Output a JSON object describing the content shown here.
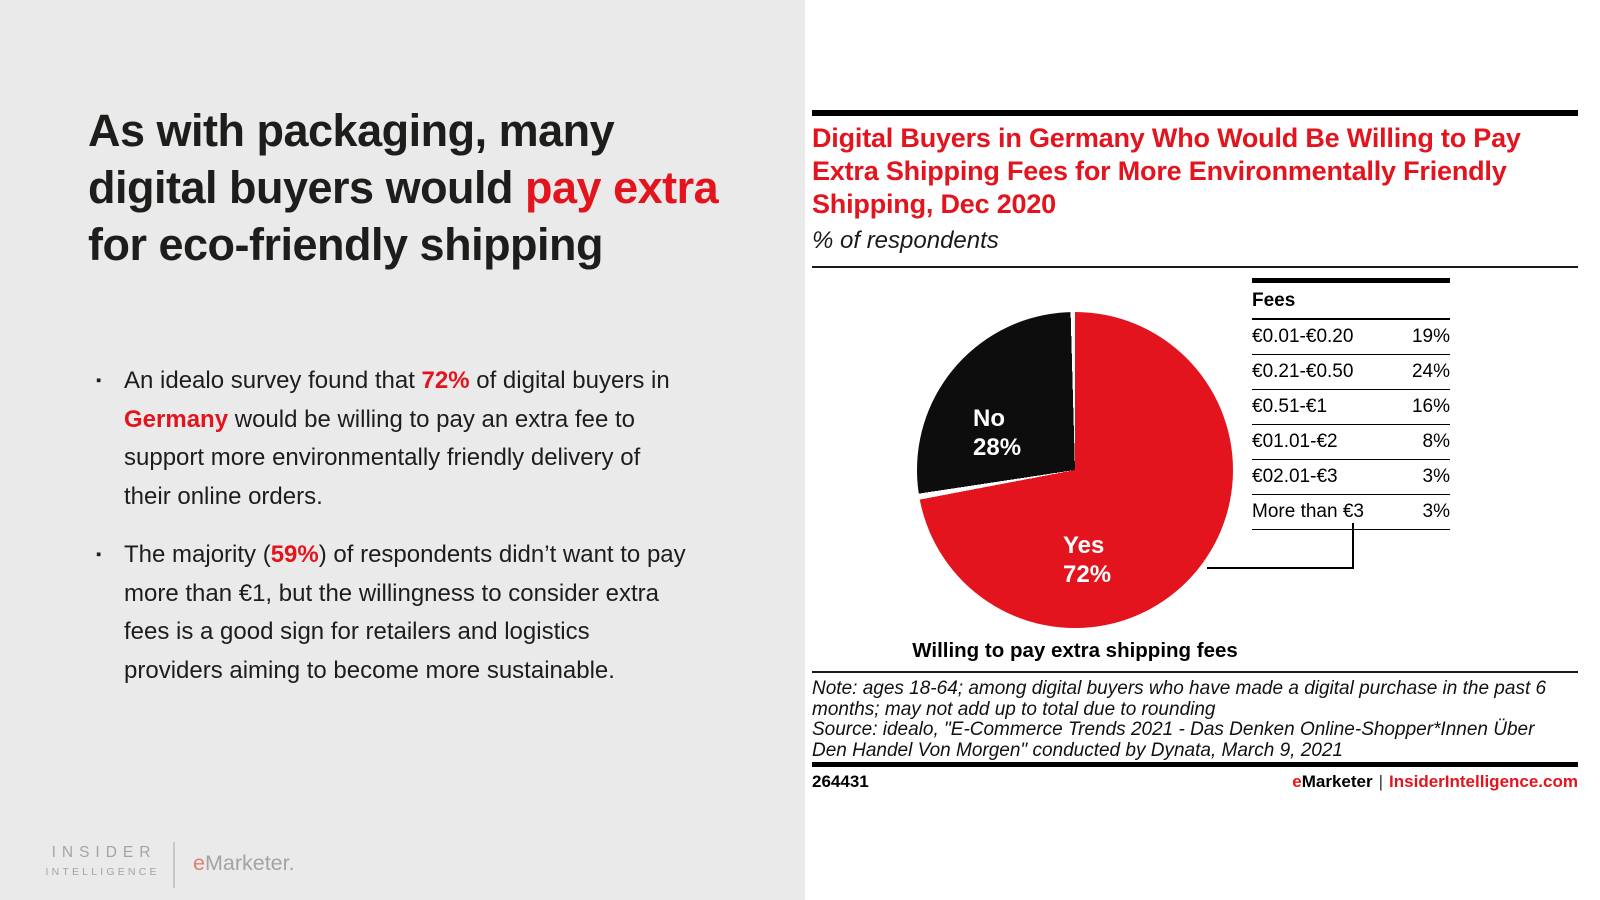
{
  "colors": {
    "accent_red": "#e3141d",
    "pie_no_black": "#0d0d0d",
    "left_panel_bg": "#ebeaea",
    "muted_logo_gray": "#a7a2a2",
    "muted_logo_red": "#d98078"
  },
  "slide": {
    "headline": {
      "pre": "As with packaging, many digital buyers would ",
      "highlight": "pay extra",
      "post": " for eco-friendly shipping"
    },
    "bullet_icon": "▪",
    "bullets": [
      {
        "s0": "An idealo survey found that ",
        "r1": "72%",
        "s2": " of digital buyers in ",
        "r3": "Germany",
        "s4": " would be willing to pay an extra fee to support more environmentally friendly delivery of their online orders."
      },
      {
        "s0": "The majority (",
        "r1": "59%",
        "s2": ") of respondents didn’t want to pay more than €1, but the willingness to consider extra fees is a good sign for retailers and logistics providers aiming to become more sustainable."
      }
    ],
    "brand": {
      "line1": "INSIDER",
      "line2": "INTELLIGENCE",
      "emarketer_e": "e",
      "emarketer_rest": "Marketer."
    }
  },
  "chart": {
    "title": "Digital Buyers in Germany Who Would Be Willing to Pay Extra Shipping Fees for More Environmentally Friendly Shipping, Dec 2020",
    "subtitle": "% of respondents",
    "pie_labels": {
      "no_name": "No",
      "no_value": "28%",
      "yes_name": "Yes",
      "yes_value": "72%"
    },
    "caption": "Willing to pay extra shipping fees",
    "fees": {
      "header": "Fees",
      "rows": [
        {
          "label": "€0.01-€0.20",
          "value": "19%"
        },
        {
          "label": "€0.21-€0.50",
          "value": "24%"
        },
        {
          "label": "€0.51-€1",
          "value": "16%"
        },
        {
          "label": "€01.01-€2",
          "value": "8%"
        },
        {
          "label": "€02.01-€3",
          "value": "3%"
        },
        {
          "label": "More than €3",
          "value": "3%"
        }
      ]
    },
    "note": "Note: ages 18-64; among digital buyers who have made a digital purchase in the past 6 months; may not add up to total due to rounding",
    "source": "Source: idealo, \"E-Commerce Trends 2021 - Das Denken Online-Shopper*Innen Über Den Handel Von Morgen\" conducted by Dynata, March 9, 2021",
    "chart_id": "264431",
    "footer": {
      "emarketer_e": "e",
      "emarketer_rest": "Marketer",
      "separator": "|",
      "site": "InsiderIntelligence.com"
    }
  },
  "chart_data": {
    "type": "pie",
    "title": "Digital Buyers in Germany Who Would Be Willing to Pay Extra Shipping Fees for More Environmentally Friendly Shipping, Dec 2020",
    "subtitle": "% of respondents",
    "slices": [
      {
        "label": "Yes",
        "value": 72,
        "color": "#e3141d"
      },
      {
        "label": "No",
        "value": 28,
        "color": "#0d0d0d"
      }
    ],
    "start_angle": "12 o'clock",
    "direction": "clockwise",
    "caption": "Willing to pay extra shipping fees",
    "legend_position": "none",
    "breakdown_table": {
      "title": "Fees",
      "unit": "%",
      "categories": [
        "€0.01-€0.20",
        "€0.21-€0.50",
        "€0.51-€1",
        "€01.01-€2",
        "€02.01-€3",
        "More than €3"
      ],
      "values": [
        19,
        24,
        16,
        8,
        3,
        3
      ]
    }
  }
}
